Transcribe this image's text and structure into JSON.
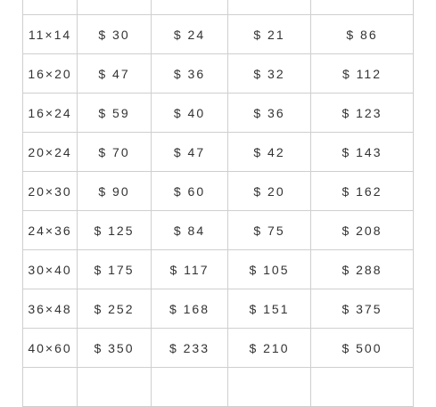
{
  "rows": [
    {
      "size": "",
      "a": "",
      "b": "",
      "c": "",
      "d": ""
    },
    {
      "size": "11×14",
      "a": "$ 30",
      "b": "$ 24",
      "c": "$ 21",
      "d": "$ 86"
    },
    {
      "size": "16×20",
      "a": "$ 47",
      "b": "$ 36",
      "c": "$ 32",
      "d": "$ 112"
    },
    {
      "size": "16×24",
      "a": "$ 59",
      "b": "$ 40",
      "c": "$ 36",
      "d": "$ 123"
    },
    {
      "size": "20×24",
      "a": "$ 70",
      "b": "$ 47",
      "c": "$ 42",
      "d": "$ 143"
    },
    {
      "size": "20×30",
      "a": "$ 90",
      "b": "$ 60",
      "c": "$ 20",
      "d": "$ 162"
    },
    {
      "size": "24×36",
      "a": "$ 125",
      "b": "$ 84",
      "c": "$ 75",
      "d": "$ 208"
    },
    {
      "size": "30×40",
      "a": "$ 175",
      "b": "$ 117",
      "c": "$ 105",
      "d": "$ 288"
    },
    {
      "size": "36×48",
      "a": "$ 252",
      "b": "$ 168",
      "c": "$ 151",
      "d": "$ 375"
    },
    {
      "size": "40×60",
      "a": "$ 350",
      "b": "$ 233",
      "c": "$ 210",
      "d": "$ 500"
    },
    {
      "size": "",
      "a": "",
      "b": "",
      "c": "",
      "d": ""
    }
  ]
}
